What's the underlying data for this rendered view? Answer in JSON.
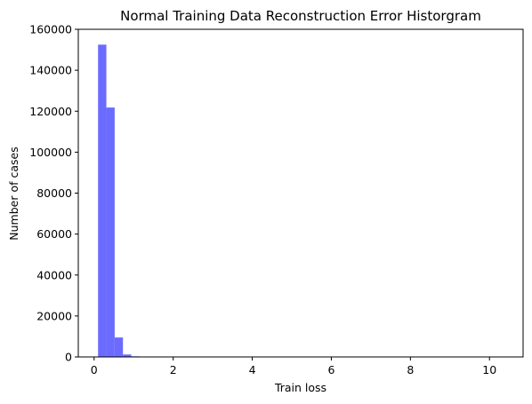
{
  "chart_data": {
    "type": "bar",
    "title": "Normal Training Data Reconstruction Error Historgram",
    "xlabel": "Train loss",
    "ylabel": "Number of cases",
    "xlim": [
      -0.4,
      10.85
    ],
    "ylim": [
      0,
      160000
    ],
    "xticks": [
      0,
      2,
      4,
      6,
      8,
      10
    ],
    "xtick_labels": [
      "0",
      "2",
      "4",
      "6",
      "8",
      "10"
    ],
    "yticks": [
      0,
      20000,
      40000,
      60000,
      80000,
      100000,
      120000,
      140000,
      160000
    ],
    "ytick_labels": [
      "0",
      "20000",
      "40000",
      "60000",
      "80000",
      "100000",
      "120000",
      "140000",
      "160000"
    ],
    "grid": false,
    "legend": "none",
    "bar_color": "#6b6bff",
    "bins": [
      {
        "x0": 0.1,
        "x1": 0.31,
        "count": 152500
      },
      {
        "x0": 0.31,
        "x1": 0.52,
        "count": 121800
      },
      {
        "x0": 0.52,
        "x1": 0.73,
        "count": 9500
      },
      {
        "x0": 0.73,
        "x1": 0.94,
        "count": 1200
      },
      {
        "x0": 0.94,
        "x1": 1.15,
        "count": 300
      },
      {
        "x0": 1.15,
        "x1": 1.36,
        "count": 100
      },
      {
        "x0": 1.36,
        "x1": 1.57,
        "count": 40
      },
      {
        "x0": 1.57,
        "x1": 1.78,
        "count": 20
      },
      {
        "x0": 1.78,
        "x1": 1.99,
        "count": 10
      }
    ]
  }
}
